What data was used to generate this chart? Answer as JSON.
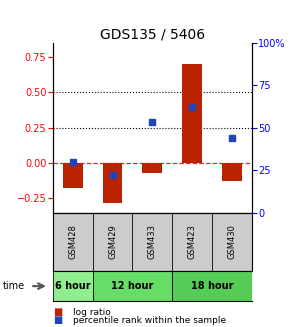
{
  "title": "GDS135 / 5406",
  "samples": [
    "GSM428",
    "GSM429",
    "GSM433",
    "GSM423",
    "GSM430"
  ],
  "log_ratios": [
    -0.18,
    -0.28,
    -0.07,
    0.7,
    -0.13
  ],
  "percentile_ranks": [
    30,
    22,
    53,
    62,
    44
  ],
  "time_groups": [
    {
      "label": "6 hour",
      "start": 0,
      "end": 1,
      "color": "#90ee90"
    },
    {
      "label": "12 hour",
      "start": 1,
      "end": 3,
      "color": "#66dd66"
    },
    {
      "label": "18 hour",
      "start": 3,
      "end": 5,
      "color": "#55cc55"
    }
  ],
  "bar_color": "#bb2200",
  "dot_color": "#2244bb",
  "ylim_left": [
    -0.35,
    0.85
  ],
  "ylim_right": [
    0,
    100
  ],
  "yticks_left": [
    -0.25,
    0.0,
    0.25,
    0.5,
    0.75
  ],
  "yticks_right": [
    0,
    25,
    50,
    75,
    100
  ],
  "hlines": [
    0.25,
    0.5
  ],
  "bar_width": 0.5,
  "background_color": "#ffffff",
  "sample_box_color": "#cccccc",
  "title_fontsize": 10
}
